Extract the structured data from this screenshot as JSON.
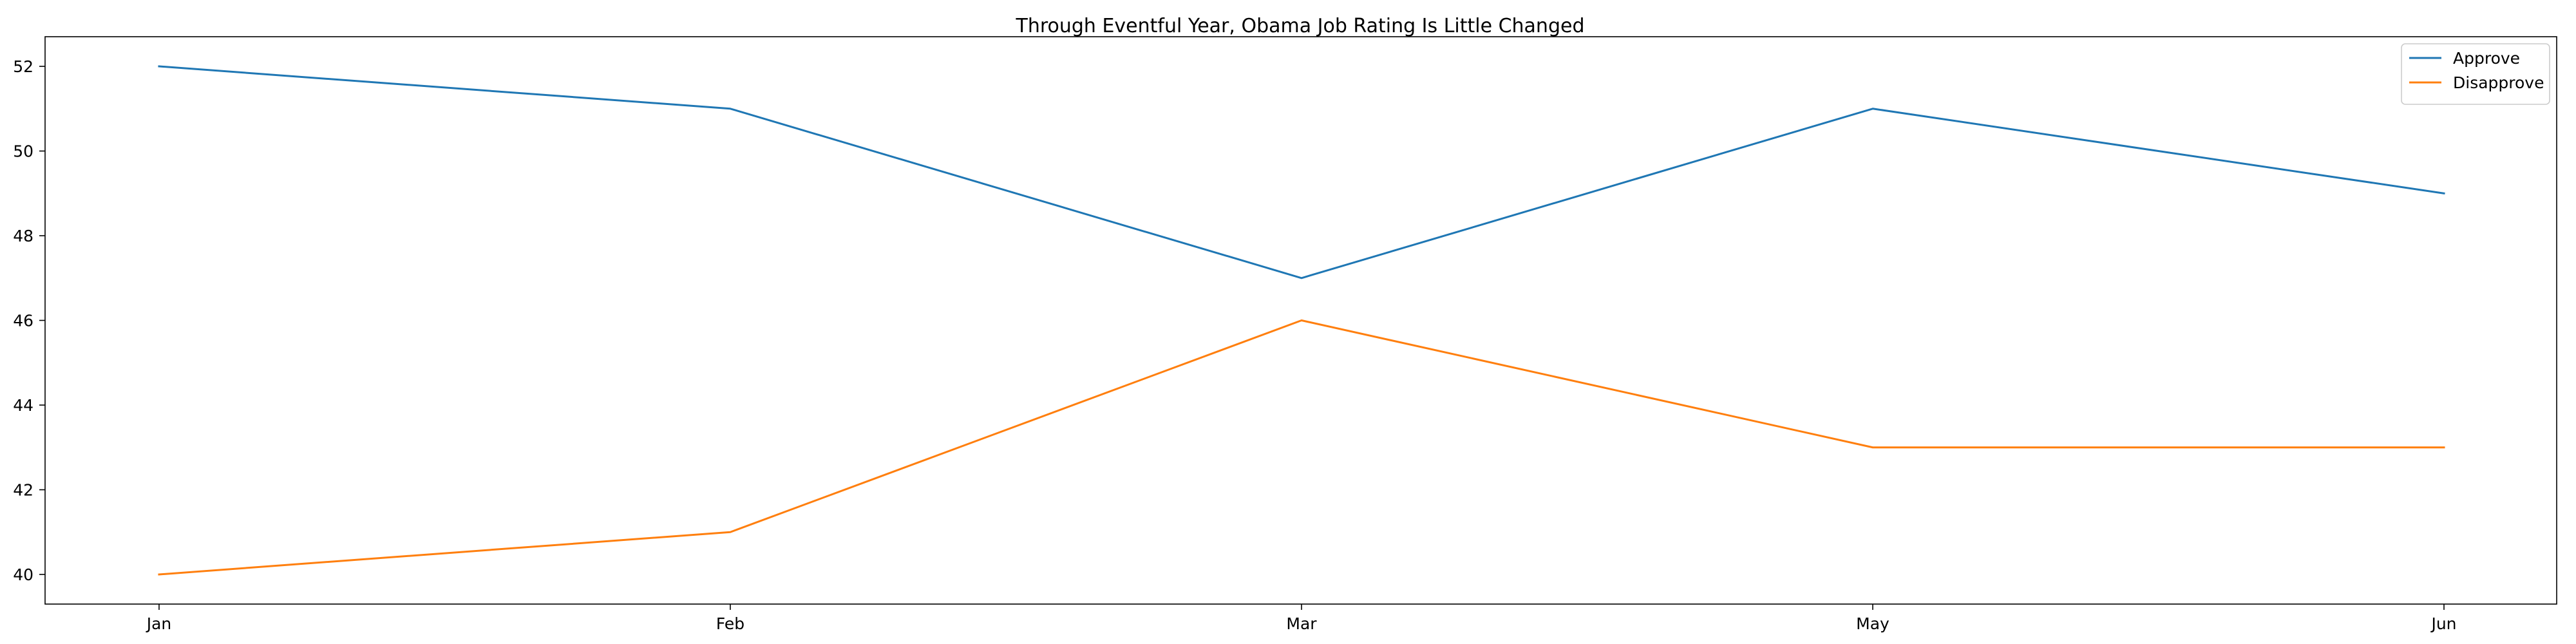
{
  "chart_data": {
    "type": "line",
    "title": "Through Eventful Year, Obama Job Rating Is Little Changed",
    "xlabel": "",
    "ylabel": "",
    "categories": [
      "Jan",
      "Feb",
      "Mar",
      "May",
      "Jun"
    ],
    "ylim": [
      39.3,
      52.7
    ],
    "yticks": [
      40,
      42,
      44,
      46,
      48,
      50,
      52
    ],
    "legend_position": "top-right",
    "grid": false,
    "series": [
      {
        "name": "Approve",
        "color": "#1f77b4",
        "values": [
          52,
          51,
          47,
          51,
          49
        ]
      },
      {
        "name": "Disapprove",
        "color": "#ff7f0e",
        "values": [
          40,
          41,
          46,
          43,
          43
        ]
      }
    ]
  }
}
